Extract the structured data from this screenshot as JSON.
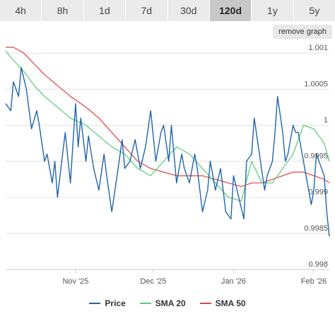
{
  "tabs": [
    {
      "label": "4h",
      "active": false
    },
    {
      "label": "8h",
      "active": false
    },
    {
      "label": "1d",
      "active": false
    },
    {
      "label": "7d",
      "active": false
    },
    {
      "label": "30d",
      "active": false
    },
    {
      "label": "120d",
      "active": true
    },
    {
      "label": "1y",
      "active": false
    },
    {
      "label": "5y",
      "active": false
    }
  ],
  "remove_graph_label": "remove graph",
  "chart_data": {
    "type": "line",
    "ylim": [
      0.998,
      1.0011
    ],
    "y_ticks": [
      0.998,
      0.9985,
      0.999,
      0.9995,
      1,
      1.0005,
      1.001
    ],
    "y_tick_labels": [
      "0.998",
      "0.9985",
      "0.999",
      "0.9995",
      "1",
      "1.0005",
      "1.001"
    ],
    "xlim": [
      "2025-10-05",
      "2026-02-07"
    ],
    "x_ticks": [
      "2025-11-01",
      "2025-12-01",
      "2026-01-01",
      "2026-02-01"
    ],
    "x_tick_labels": [
      "Nov '25",
      "Dec '25",
      "Jan '26",
      "Feb '26"
    ],
    "grid": true,
    "legend_position": "bottom-center",
    "series": [
      {
        "name": "Price",
        "color": "#2266a8",
        "x": [
          "2025-10-05",
          "2025-10-07",
          "2025-10-08",
          "2025-10-10",
          "2025-10-11",
          "2025-10-13",
          "2025-10-15",
          "2025-10-17",
          "2025-10-18",
          "2025-10-20",
          "2025-10-21",
          "2025-10-23",
          "2025-10-24",
          "2025-10-25",
          "2025-10-27",
          "2025-10-28",
          "2025-10-30",
          "2025-11-01",
          "2025-11-02",
          "2025-11-03",
          "2025-11-05",
          "2025-11-06",
          "2025-11-08",
          "2025-11-10",
          "2025-11-12",
          "2025-11-13",
          "2025-11-15",
          "2025-11-17",
          "2025-11-19",
          "2025-11-20",
          "2025-11-22",
          "2025-11-24",
          "2025-11-26",
          "2025-11-28",
          "2025-11-30",
          "2025-12-02",
          "2025-12-04",
          "2025-12-05",
          "2025-12-07",
          "2025-12-08",
          "2025-12-10",
          "2025-12-12",
          "2025-12-13",
          "2025-12-15",
          "2025-12-17",
          "2025-12-18",
          "2025-12-20",
          "2025-12-22",
          "2025-12-23",
          "2025-12-25",
          "2025-12-27",
          "2025-12-29",
          "2025-12-31",
          "2026-01-01",
          "2026-01-03",
          "2026-01-05",
          "2026-01-06",
          "2026-01-08",
          "2026-01-09",
          "2026-01-11",
          "2026-01-13",
          "2026-01-14",
          "2026-01-16",
          "2026-01-17",
          "2026-01-18",
          "2026-01-20",
          "2026-01-21",
          "2026-01-22",
          "2026-01-24",
          "2026-01-25",
          "2026-01-26",
          "2026-01-28",
          "2026-01-29",
          "2026-01-31",
          "2026-02-01",
          "2026-02-02",
          "2026-02-04",
          "2026-02-05",
          "2026-02-06",
          "2026-02-07"
        ],
        "values": [
          1.0003,
          1.0002,
          1.0006,
          1.0004,
          1.0008,
          1.0005,
          0.99995,
          1.0002,
          1.0,
          0.9995,
          0.9996,
          0.9992,
          0.9995,
          0.999,
          0.9996,
          0.9999,
          0.9992,
          1.0003,
          0.9997,
          1.0001,
          0.9995,
          0.99985,
          0.9994,
          0.9991,
          0.9996,
          0.9993,
          0.9988,
          0.9993,
          0.9998,
          0.9994,
          0.9995,
          0.9998,
          0.9994,
          0.9997,
          1.0002,
          0.9995,
          0.9999,
          1.0,
          0.9995,
          1.0,
          0.9992,
          0.9996,
          0.9994,
          0.9992,
          0.9996,
          0.9994,
          0.9988,
          0.9991,
          0.9995,
          0.9991,
          0.9994,
          0.9988,
          0.9987,
          0.9993,
          0.999,
          0.9987,
          0.9995,
          0.9996,
          1.0001,
          0.9996,
          0.9991,
          0.9993,
          0.9995,
          0.9999,
          1.0004,
          0.9999,
          0.9995,
          0.9996,
          1.0,
          0.9999,
          0.9999,
          0.9995,
          0.9993,
          0.9989,
          0.9991,
          0.9996,
          0.9994,
          0.9993,
          0.9988,
          0.99846
        ]
      },
      {
        "name": "SMA 20",
        "color": "#55cc77",
        "x": [
          "2025-10-05",
          "2025-10-08",
          "2025-10-12",
          "2025-10-16",
          "2025-10-20",
          "2025-10-25",
          "2025-10-30",
          "2025-11-05",
          "2025-11-10",
          "2025-11-15",
          "2025-11-20",
          "2025-11-25",
          "2025-11-30",
          "2025-12-05",
          "2025-12-10",
          "2025-12-15",
          "2025-12-20",
          "2025-12-25",
          "2025-12-30",
          "2026-01-04",
          "2026-01-08",
          "2026-01-12",
          "2026-01-16",
          "2026-01-20",
          "2026-01-24",
          "2026-01-28",
          "2026-02-01",
          "2026-02-05",
          "2026-02-07"
        ],
        "values": [
          1.00103,
          1.0009,
          1.00075,
          1.00055,
          1.0004,
          1.00025,
          1.0001,
          1.0,
          0.99985,
          0.9997,
          0.9996,
          0.9994,
          0.9993,
          0.9995,
          0.9997,
          0.9996,
          0.9994,
          0.9992,
          0.999,
          0.99895,
          0.9995,
          0.9992,
          0.9992,
          0.9994,
          0.9996,
          1.0,
          0.99995,
          0.99975,
          0.9995
        ]
      },
      {
        "name": "SMA 50",
        "color": "#dd4444",
        "x": [
          "2025-10-05",
          "2025-10-08",
          "2025-10-12",
          "2025-10-16",
          "2025-10-20",
          "2025-10-25",
          "2025-10-30",
          "2025-11-05",
          "2025-11-10",
          "2025-11-15",
          "2025-11-20",
          "2025-11-25",
          "2025-11-30",
          "2025-12-05",
          "2025-12-10",
          "2025-12-15",
          "2025-12-20",
          "2025-12-25",
          "2025-12-30",
          "2026-01-04",
          "2026-01-08",
          "2026-01-12",
          "2026-01-16",
          "2026-01-20",
          "2026-01-24",
          "2026-01-28",
          "2026-02-01",
          "2026-02-05",
          "2026-02-07"
        ],
        "values": [
          1.00108,
          1.00108,
          1.001,
          1.00085,
          1.0007,
          1.00055,
          1.0004,
          1.00025,
          1.0001,
          0.9999,
          0.9997,
          0.9995,
          0.9994,
          0.99935,
          0.9993,
          0.9993,
          0.9993,
          0.99925,
          0.9992,
          0.99915,
          0.9992,
          0.9992,
          0.99925,
          0.9993,
          0.99935,
          0.99935,
          0.9993,
          0.99925,
          0.9992
        ]
      }
    ]
  }
}
